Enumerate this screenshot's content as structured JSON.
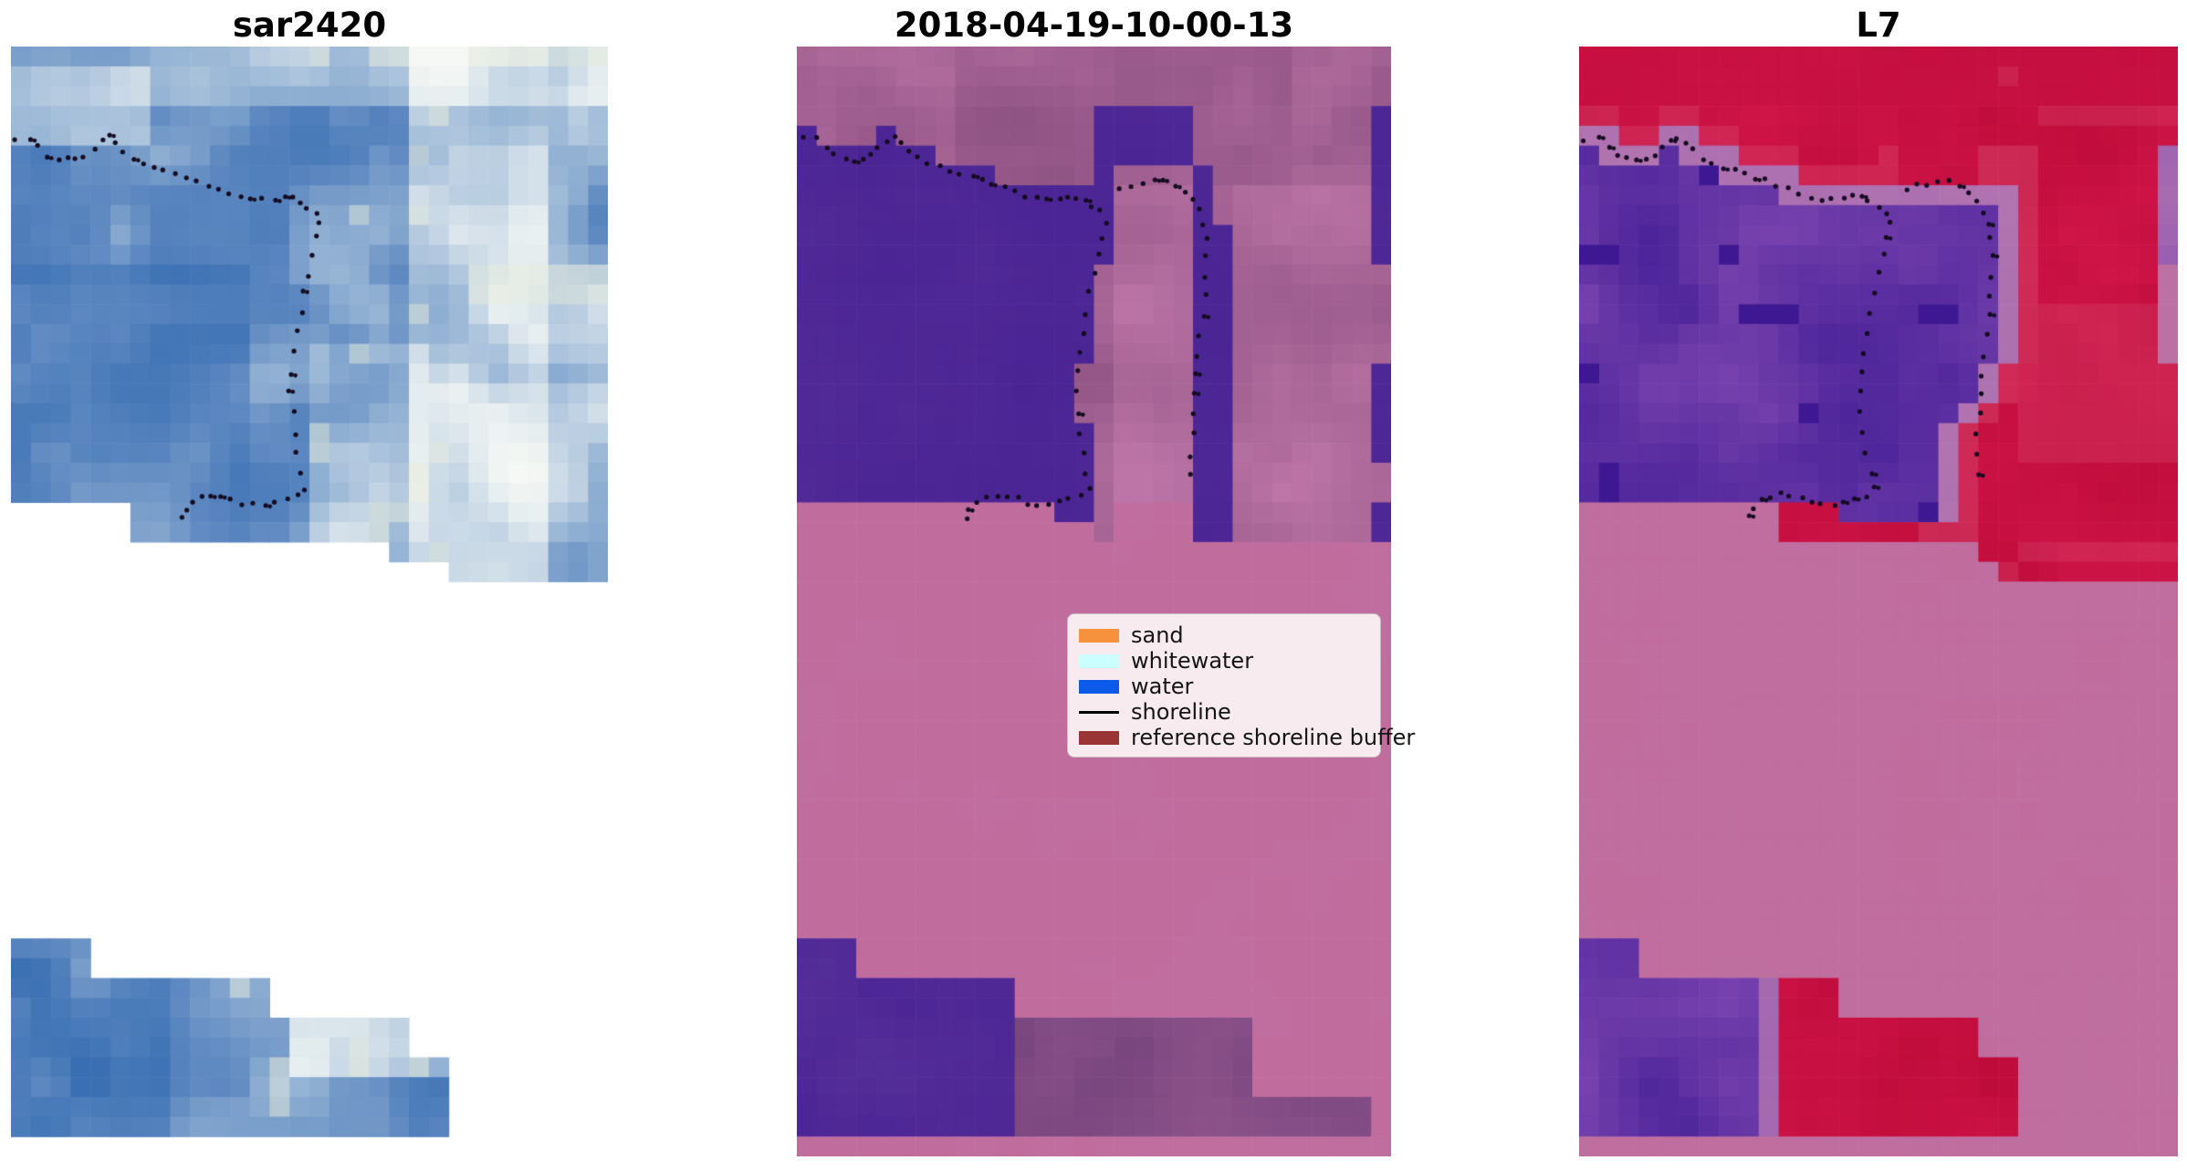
{
  "figure": {
    "background": "#ffffff"
  },
  "panels": [
    {
      "title": "sar2420"
    },
    {
      "title": "2018-04-19-10-00-13"
    },
    {
      "title": "L7"
    }
  ],
  "legend": {
    "background": "#f7ebf0",
    "border_color": "#c9bac1",
    "items": [
      {
        "label": "sand",
        "swatch": "patch",
        "color": "#f6913d"
      },
      {
        "label": "whitewater",
        "swatch": "patch",
        "color": "#ccffff"
      },
      {
        "label": "water",
        "swatch": "patch",
        "color": "#0b5be8"
      },
      {
        "label": "shoreline",
        "swatch": "line",
        "color": "#000000"
      },
      {
        "label": "reference shoreline buffer",
        "swatch": "patch",
        "color": "#9b3434"
      }
    ]
  },
  "shoreline": {
    "dot_color": "#140b20",
    "main_path": [
      [
        0.008,
        0.083
      ],
      [
        0.03,
        0.082
      ],
      [
        0.048,
        0.09
      ],
      [
        0.064,
        0.098
      ],
      [
        0.08,
        0.101
      ],
      [
        0.095,
        0.102
      ],
      [
        0.11,
        0.101
      ],
      [
        0.124,
        0.098
      ],
      [
        0.138,
        0.092
      ],
      [
        0.152,
        0.084
      ],
      [
        0.163,
        0.081
      ],
      [
        0.176,
        0.086
      ],
      [
        0.19,
        0.094
      ],
      [
        0.205,
        0.1
      ],
      [
        0.222,
        0.104
      ],
      [
        0.24,
        0.108
      ],
      [
        0.258,
        0.111
      ],
      [
        0.276,
        0.114
      ],
      [
        0.295,
        0.118
      ],
      [
        0.313,
        0.121
      ],
      [
        0.331,
        0.124
      ],
      [
        0.35,
        0.128
      ],
      [
        0.368,
        0.132
      ],
      [
        0.386,
        0.135
      ],
      [
        0.404,
        0.137
      ],
      [
        0.422,
        0.138
      ],
      [
        0.44,
        0.137
      ],
      [
        0.456,
        0.135
      ],
      [
        0.47,
        0.135
      ],
      [
        0.484,
        0.139
      ],
      [
        0.498,
        0.144
      ],
      [
        0.51,
        0.149
      ],
      [
        0.518,
        0.158
      ],
      [
        0.513,
        0.172
      ],
      [
        0.506,
        0.188
      ],
      [
        0.499,
        0.205
      ],
      [
        0.492,
        0.222
      ],
      [
        0.486,
        0.24
      ],
      [
        0.48,
        0.258
      ],
      [
        0.474,
        0.276
      ],
      [
        0.47,
        0.294
      ],
      [
        0.469,
        0.312
      ],
      [
        0.471,
        0.33
      ],
      [
        0.475,
        0.348
      ],
      [
        0.481,
        0.366
      ],
      [
        0.488,
        0.383
      ],
      [
        0.494,
        0.398
      ],
      [
        0.478,
        0.404
      ],
      [
        0.46,
        0.407
      ],
      [
        0.442,
        0.41
      ],
      [
        0.424,
        0.412
      ],
      [
        0.406,
        0.413
      ],
      [
        0.388,
        0.411
      ],
      [
        0.37,
        0.408
      ],
      [
        0.352,
        0.405
      ],
      [
        0.335,
        0.404
      ],
      [
        0.318,
        0.405
      ],
      [
        0.303,
        0.409
      ],
      [
        0.291,
        0.416
      ],
      [
        0.286,
        0.424
      ]
    ],
    "outer_path": [
      [
        0.545,
        0.128
      ],
      [
        0.563,
        0.125
      ],
      [
        0.582,
        0.123
      ],
      [
        0.6,
        0.121
      ],
      [
        0.618,
        0.121
      ],
      [
        0.636,
        0.124
      ],
      [
        0.652,
        0.13
      ],
      [
        0.665,
        0.138
      ],
      [
        0.676,
        0.148
      ],
      [
        0.684,
        0.16
      ],
      [
        0.689,
        0.174
      ],
      [
        0.691,
        0.19
      ],
      [
        0.69,
        0.207
      ],
      [
        0.687,
        0.224
      ],
      [
        0.683,
        0.242
      ],
      [
        0.679,
        0.26
      ],
      [
        0.676,
        0.278
      ],
      [
        0.673,
        0.296
      ],
      [
        0.67,
        0.314
      ],
      [
        0.668,
        0.332
      ],
      [
        0.666,
        0.35
      ],
      [
        0.665,
        0.368
      ],
      [
        0.664,
        0.385
      ]
    ]
  },
  "palette": {
    "sar": {
      "ramp": [
        "#2a5ca6",
        "#3a70b3",
        "#5c87c0",
        "#8fafd2",
        "#c3d4e4",
        "#e4ecef",
        "#f5f8f4"
      ],
      "cream": "#e7ecda"
    },
    "classified": {
      "water_purple_dark": "#4a2394",
      "water_purple_light": "#563099",
      "pink": "#c06d9e",
      "mauve_dark": "#8f5384",
      "mauve_light": "#bc75a6",
      "bottom_dark1": "#6e3f78",
      "bottom_dark2": "#96588f"
    },
    "l7": {
      "red_dark": "#bb0a38",
      "red_bright": "#d3164b",
      "rose": "#d84a70",
      "purple_dark": "#441e96",
      "purple_light": "#7d46b0",
      "lavender": "#b678b0",
      "pink": "#c06d9e"
    }
  }
}
